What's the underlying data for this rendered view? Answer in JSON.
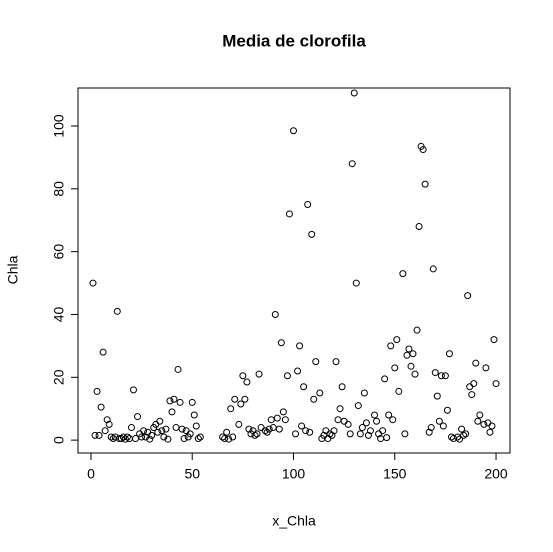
{
  "chart_data": {
    "type": "scatter",
    "title": "Media de clorofila",
    "x_label": "x_Chla",
    "y_label": "Chla",
    "x": [
      1,
      2,
      3,
      4,
      5,
      6,
      7,
      8,
      9,
      10,
      11,
      12,
      13,
      14,
      15,
      16,
      17,
      18,
      19,
      20,
      21,
      22,
      23,
      24,
      25,
      26,
      27,
      28,
      29,
      30,
      31,
      32,
      33,
      34,
      35,
      36,
      37,
      38,
      39,
      40,
      41,
      42,
      43,
      44,
      45,
      46,
      47,
      48,
      49,
      50,
      51,
      52,
      53,
      54,
      65,
      66,
      67,
      68,
      69,
      70,
      71,
      73,
      74,
      75,
      76,
      77,
      78,
      79,
      80,
      81,
      82,
      83,
      84,
      86,
      87,
      88,
      89,
      90,
      91,
      92,
      93,
      94,
      95,
      96,
      97,
      98,
      100,
      101,
      102,
      103,
      104,
      105,
      106,
      107,
      108,
      109,
      110,
      111,
      113,
      114,
      115,
      116,
      117,
      118,
      119,
      120,
      121,
      122,
      123,
      124,
      125,
      127,
      128,
      129,
      130,
      131,
      132,
      133,
      134,
      135,
      136,
      137,
      138,
      140,
      141,
      142,
      143,
      144,
      145,
      146,
      147,
      148,
      149,
      150,
      151,
      152,
      154,
      155,
      156,
      157,
      158,
      159,
      160,
      161,
      162,
      163,
      164,
      165,
      167,
      168,
      169,
      170,
      171,
      172,
      173,
      174,
      175,
      176,
      177,
      178,
      179,
      181,
      182,
      183,
      184,
      185,
      186,
      187,
      188,
      189,
      190,
      191,
      192,
      194,
      195,
      196,
      197,
      198,
      199,
      200
    ],
    "values": [
      50,
      1.5,
      15.5,
      1.5,
      10.5,
      28,
      3,
      6.5,
      5,
      1,
      0.5,
      1,
      41,
      0.5,
      0.5,
      1,
      0.3,
      1,
      0.5,
      4,
      16,
      0.5,
      7.5,
      2,
      1,
      3,
      1,
      2.5,
      0.3,
      1.5,
      4,
      5,
      2.5,
      6,
      3,
      1,
      3.5,
      0.3,
      12.5,
      9,
      13,
      4,
      22.5,
      12,
      3.5,
      0.5,
      3,
      1,
      2,
      12,
      8,
      4.5,
      0.5,
      1,
      1,
      0.5,
      2.5,
      0.3,
      10,
      1,
      13,
      5,
      11.5,
      20.5,
      13,
      18.5,
      3.5,
      2,
      3,
      1.5,
      2,
      21,
      4,
      3,
      2.5,
      3.5,
      6.5,
      4,
      40,
      7,
      3.5,
      31,
      9,
      6.5,
      20.5,
      72,
      98.5,
      2,
      22,
      30,
      4.5,
      17,
      3,
      75,
      2.5,
      65.5,
      13,
      25,
      15,
      0.5,
      1.5,
      3,
      0.5,
      2,
      1.5,
      3,
      25,
      6.5,
      10,
      17,
      6,
      5,
      2,
      88,
      110.5,
      50,
      11,
      2,
      4,
      15,
      5.5,
      1.5,
      3,
      8,
      6,
      2,
      0.5,
      3,
      19.5,
      0.8,
      8,
      30,
      6.5,
      23,
      32,
      15.5,
      53,
      2,
      27,
      29,
      23.5,
      27.5,
      21,
      35,
      68,
      93.5,
      92.5,
      81.5,
      2.5,
      4,
      54.5,
      21.5,
      14,
      6,
      20.5,
      4.5,
      20.5,
      9.5,
      27.5,
      1,
      0.5,
      1,
      0.3,
      3.5,
      1.5,
      2,
      46,
      17,
      14.5,
      18,
      24.5,
      6,
      8,
      5,
      23,
      5.5,
      2.5,
      4.5,
      32,
      18
    ],
    "color": "#000000",
    "xlim": [
      -6.4,
      206.9
    ],
    "ylim": [
      -4.1,
      112.1
    ],
    "xticks": [
      0,
      50,
      100,
      150,
      200
    ],
    "yticks": [
      0,
      20,
      40,
      60,
      80,
      100
    ]
  }
}
